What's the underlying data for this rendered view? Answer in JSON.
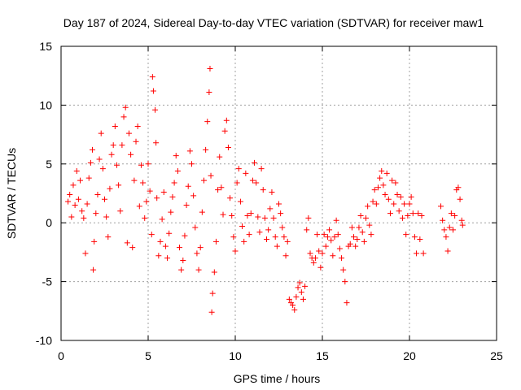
{
  "chart_data": {
    "type": "scatter",
    "title": "Day 187 of 2024, Sidereal Day-to-day VTEC variation (SDTVAR) for receiver maw1",
    "xlabel": "GPS time / hours",
    "ylabel": "SDTVAR / TECUs",
    "xlim": [
      0,
      25
    ],
    "ylim": [
      -10,
      15
    ],
    "xticks": [
      0,
      5,
      10,
      15,
      20,
      25
    ],
    "yticks": [
      -10,
      -5,
      0,
      5,
      10,
      15
    ],
    "grid": true,
    "marker": "+",
    "color": "#ff0000",
    "series": [
      {
        "name": "SDTVAR",
        "points": [
          [
            0.4,
            1.8
          ],
          [
            0.5,
            2.4
          ],
          [
            0.6,
            0.5
          ],
          [
            0.7,
            3.2
          ],
          [
            0.8,
            1.5
          ],
          [
            0.9,
            4.4
          ],
          [
            1.0,
            2.0
          ],
          [
            1.1,
            3.6
          ],
          [
            1.2,
            1.0
          ],
          [
            1.3,
            0.4
          ],
          [
            1.4,
            -2.6
          ],
          [
            1.5,
            1.6
          ],
          [
            1.6,
            3.8
          ],
          [
            1.7,
            5.1
          ],
          [
            1.8,
            6.2
          ],
          [
            1.85,
            -4.0
          ],
          [
            1.9,
            -1.6
          ],
          [
            2.0,
            0.8
          ],
          [
            2.1,
            2.4
          ],
          [
            2.2,
            5.4
          ],
          [
            2.3,
            7.6
          ],
          [
            2.4,
            4.6
          ],
          [
            2.5,
            2.0
          ],
          [
            2.6,
            0.5
          ],
          [
            2.7,
            -1.2
          ],
          [
            2.8,
            2.9
          ],
          [
            2.9,
            5.8
          ],
          [
            3.0,
            6.6
          ],
          [
            3.1,
            8.2
          ],
          [
            3.2,
            4.9
          ],
          [
            3.3,
            3.2
          ],
          [
            3.4,
            1.0
          ],
          [
            3.5,
            6.6
          ],
          [
            3.6,
            9.0
          ],
          [
            3.7,
            9.8
          ],
          [
            3.8,
            -1.7
          ],
          [
            3.9,
            7.6
          ],
          [
            4.0,
            5.8
          ],
          [
            4.1,
            -2.1
          ],
          [
            4.2,
            3.6
          ],
          [
            4.3,
            6.9
          ],
          [
            4.4,
            8.2
          ],
          [
            4.5,
            1.4
          ],
          [
            4.6,
            4.9
          ],
          [
            4.7,
            3.4
          ],
          [
            4.8,
            0.4
          ],
          [
            4.9,
            1.8
          ],
          [
            5.0,
            5.0
          ],
          [
            5.1,
            2.7
          ],
          [
            5.2,
            -1.0
          ],
          [
            5.25,
            12.4
          ],
          [
            5.3,
            11.2
          ],
          [
            5.4,
            9.6
          ],
          [
            5.45,
            6.8
          ],
          [
            5.5,
            2.1
          ],
          [
            5.6,
            -2.8
          ],
          [
            5.7,
            -1.6
          ],
          [
            5.8,
            0.3
          ],
          [
            5.9,
            2.6
          ],
          [
            6.0,
            -2.0
          ],
          [
            6.1,
            -3.0
          ],
          [
            6.2,
            -0.9
          ],
          [
            6.3,
            0.9
          ],
          [
            6.4,
            2.2
          ],
          [
            6.5,
            3.4
          ],
          [
            6.6,
            5.7
          ],
          [
            6.7,
            4.4
          ],
          [
            6.8,
            -2.1
          ],
          [
            6.9,
            -4.0
          ],
          [
            7.0,
            -3.2
          ],
          [
            7.1,
            -1.1
          ],
          [
            7.2,
            1.5
          ],
          [
            7.3,
            3.1
          ],
          [
            7.4,
            6.1
          ],
          [
            7.5,
            5.0
          ],
          [
            7.6,
            2.3
          ],
          [
            7.7,
            -0.4
          ],
          [
            7.8,
            -2.6
          ],
          [
            7.9,
            -4.0
          ],
          [
            8.0,
            -2.1
          ],
          [
            8.1,
            0.9
          ],
          [
            8.2,
            3.6
          ],
          [
            8.3,
            6.2
          ],
          [
            8.4,
            8.6
          ],
          [
            8.5,
            11.1
          ],
          [
            8.55,
            13.1
          ],
          [
            8.6,
            4.0
          ],
          [
            8.65,
            -7.6
          ],
          [
            8.7,
            -6.0
          ],
          [
            8.8,
            -4.2
          ],
          [
            8.9,
            -1.6
          ],
          [
            9.0,
            2.8
          ],
          [
            9.1,
            5.6
          ],
          [
            9.2,
            3.0
          ],
          [
            9.3,
            0.7
          ],
          [
            9.4,
            7.8
          ],
          [
            9.5,
            8.7
          ],
          [
            9.6,
            6.4
          ],
          [
            9.7,
            2.1
          ],
          [
            9.8,
            0.6
          ],
          [
            9.9,
            -1.2
          ],
          [
            10.0,
            -2.4
          ],
          [
            10.1,
            3.4
          ],
          [
            10.2,
            4.6
          ],
          [
            10.3,
            1.8
          ],
          [
            10.4,
            -0.3
          ],
          [
            10.5,
            -1.6
          ],
          [
            10.6,
            4.2
          ],
          [
            10.7,
            0.6
          ],
          [
            10.8,
            -1.0
          ],
          [
            10.9,
            0.8
          ],
          [
            11.0,
            3.6
          ],
          [
            11.1,
            5.1
          ],
          [
            11.2,
            3.4
          ],
          [
            11.3,
            0.5
          ],
          [
            11.4,
            -0.8
          ],
          [
            11.5,
            4.6
          ],
          [
            11.6,
            2.8
          ],
          [
            11.7,
            0.4
          ],
          [
            11.8,
            -1.4
          ],
          [
            11.9,
            -0.6
          ],
          [
            12.0,
            1.2
          ],
          [
            12.1,
            2.6
          ],
          [
            12.2,
            0.4
          ],
          [
            12.3,
            -1.2
          ],
          [
            12.4,
            -2.0
          ],
          [
            12.5,
            1.6
          ],
          [
            12.6,
            0.8
          ],
          [
            12.7,
            -0.4
          ],
          [
            12.8,
            -1.2
          ],
          [
            12.9,
            -2.8
          ],
          [
            13.0,
            -1.6
          ],
          [
            13.1,
            -6.5
          ],
          [
            13.2,
            -6.8
          ],
          [
            13.3,
            -7.0
          ],
          [
            13.4,
            -7.4
          ],
          [
            13.5,
            -6.3
          ],
          [
            13.6,
            -5.5
          ],
          [
            13.7,
            -5.1
          ],
          [
            13.8,
            -5.9
          ],
          [
            13.9,
            -6.5
          ],
          [
            14.0,
            -5.4
          ],
          [
            14.1,
            -0.6
          ],
          [
            14.2,
            0.4
          ],
          [
            14.3,
            -2.6
          ],
          [
            14.4,
            -3.0
          ],
          [
            14.5,
            -3.4
          ],
          [
            14.6,
            -3.0
          ],
          [
            14.7,
            -1.0
          ],
          [
            14.8,
            -2.4
          ],
          [
            14.9,
            -3.8
          ],
          [
            15.0,
            -2.6
          ],
          [
            15.1,
            -1.0
          ],
          [
            15.2,
            -2.0
          ],
          [
            15.3,
            -1.2
          ],
          [
            15.4,
            -0.6
          ],
          [
            15.5,
            -1.5
          ],
          [
            15.6,
            -2.8
          ],
          [
            15.7,
            -1.2
          ],
          [
            15.8,
            0.2
          ],
          [
            15.9,
            -1.0
          ],
          [
            16.0,
            -2.2
          ],
          [
            16.1,
            -3.0
          ],
          [
            16.2,
            -4.0
          ],
          [
            16.3,
            -5.0
          ],
          [
            16.4,
            -6.8
          ],
          [
            16.5,
            -2.0
          ],
          [
            16.6,
            -1.8
          ],
          [
            16.7,
            -0.4
          ],
          [
            16.8,
            -1.2
          ],
          [
            16.9,
            -2.0
          ],
          [
            17.0,
            -1.4
          ],
          [
            17.1,
            -0.4
          ],
          [
            17.2,
            0.6
          ],
          [
            17.3,
            -0.8
          ],
          [
            17.4,
            -1.6
          ],
          [
            17.5,
            0.4
          ],
          [
            17.6,
            1.4
          ],
          [
            17.7,
            -0.2
          ],
          [
            17.8,
            -1.0
          ],
          [
            17.9,
            1.8
          ],
          [
            18.0,
            2.8
          ],
          [
            18.1,
            1.6
          ],
          [
            18.2,
            3.0
          ],
          [
            18.3,
            3.8
          ],
          [
            18.4,
            4.4
          ],
          [
            18.5,
            3.2
          ],
          [
            18.6,
            2.4
          ],
          [
            18.7,
            4.2
          ],
          [
            18.8,
            2.0
          ],
          [
            18.9,
            0.8
          ],
          [
            19.0,
            3.6
          ],
          [
            19.1,
            1.6
          ],
          [
            19.2,
            3.4
          ],
          [
            19.3,
            2.4
          ],
          [
            19.4,
            1.0
          ],
          [
            19.5,
            2.2
          ],
          [
            19.6,
            0.4
          ],
          [
            19.7,
            1.6
          ],
          [
            19.8,
            -1.0
          ],
          [
            19.9,
            0.6
          ],
          [
            20.0,
            1.6
          ],
          [
            20.1,
            2.2
          ],
          [
            20.2,
            0.8
          ],
          [
            20.3,
            -1.2
          ],
          [
            20.4,
            -2.6
          ],
          [
            20.5,
            0.8
          ],
          [
            20.6,
            -1.4
          ],
          [
            20.7,
            0.6
          ],
          [
            20.8,
            -2.6
          ],
          [
            21.8,
            1.4
          ],
          [
            21.9,
            0.2
          ],
          [
            22.0,
            -0.6
          ],
          [
            22.1,
            -1.2
          ],
          [
            22.2,
            -2.4
          ],
          [
            22.3,
            -0.4
          ],
          [
            22.4,
            0.8
          ],
          [
            22.5,
            -0.6
          ],
          [
            22.6,
            0.6
          ],
          [
            22.7,
            2.8
          ],
          [
            22.8,
            3.0
          ],
          [
            22.9,
            2.0
          ],
          [
            23.0,
            0.2
          ],
          [
            23.05,
            -0.2
          ]
        ]
      }
    ]
  }
}
